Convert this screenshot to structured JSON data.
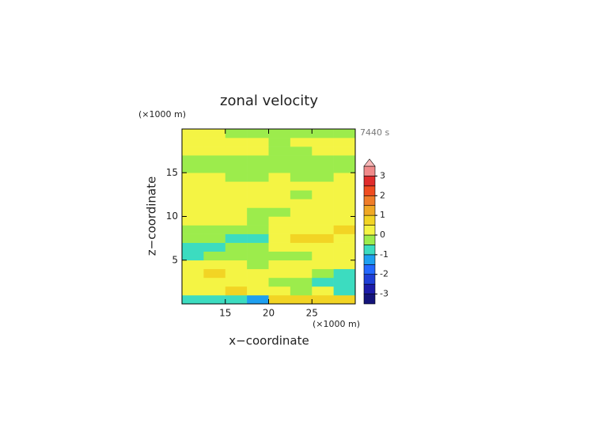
{
  "chart_data": {
    "type": "contour",
    "title": "zonal velocity",
    "xlabel": "x−coordinate",
    "ylabel": "z−coordinate",
    "x_unit_label": "(×1000 m)",
    "y_unit_label": "(×1000 m)",
    "time_label": "7440 s",
    "xlim": [
      10,
      30
    ],
    "ylim": [
      0,
      20
    ],
    "xticks": [
      15,
      20,
      25
    ],
    "yticks": [
      5,
      10,
      15
    ],
    "x": [
      11.25,
      13.75,
      16.25,
      18.75,
      21.25,
      23.75,
      26.25,
      28.75
    ],
    "y": [
      0.5,
      1.5,
      2.5,
      3.5,
      4.5,
      5.5,
      6.5,
      7.5,
      8.5,
      9.5,
      10.5,
      11.5,
      12.5,
      13.5,
      14.5,
      15.5,
      16.5,
      17.5,
      18.5,
      19.5
    ],
    "z": [
      [
        -0.75,
        -0.75,
        -0.75,
        -1.25,
        0.75,
        0.75,
        0.75,
        0.75
      ],
      [
        0.25,
        0.25,
        0.75,
        0.25,
        0.25,
        -0.25,
        0.25,
        -0.75
      ],
      [
        0.25,
        0.25,
        0.25,
        0.25,
        -0.25,
        -0.25,
        -0.75,
        -0.75
      ],
      [
        0.25,
        0.75,
        0.25,
        0.25,
        0.25,
        0.25,
        -0.25,
        -0.75
      ],
      [
        0.25,
        0.25,
        0.25,
        -0.25,
        0.25,
        0.25,
        0.25,
        0.25
      ],
      [
        -0.75,
        -0.25,
        -0.25,
        -0.25,
        -0.25,
        -0.25,
        0.25,
        0.25
      ],
      [
        -0.75,
        -0.75,
        -0.25,
        -0.25,
        0.25,
        0.25,
        0.25,
        0.25
      ],
      [
        -0.25,
        -0.25,
        -0.75,
        -0.75,
        0.25,
        0.75,
        0.75,
        0.25
      ],
      [
        -0.25,
        -0.25,
        -0.25,
        -0.25,
        0.25,
        0.25,
        0.25,
        0.75
      ],
      [
        0.25,
        0.25,
        0.25,
        -0.25,
        0.25,
        0.25,
        0.25,
        0.25
      ],
      [
        0.25,
        0.25,
        0.25,
        -0.25,
        -0.25,
        0.25,
        0.25,
        0.25
      ],
      [
        0.25,
        0.25,
        0.25,
        0.25,
        0.25,
        0.25,
        0.25,
        0.25
      ],
      [
        0.25,
        0.25,
        0.25,
        0.25,
        0.25,
        -0.25,
        0.25,
        0.25
      ],
      [
        0.25,
        0.25,
        0.25,
        0.25,
        0.25,
        0.25,
        0.25,
        0.25
      ],
      [
        0.25,
        0.25,
        -0.25,
        -0.25,
        0.25,
        -0.25,
        -0.25,
        0.25
      ],
      [
        -0.25,
        -0.25,
        -0.25,
        -0.25,
        -0.25,
        -0.25,
        -0.25,
        -0.25
      ],
      [
        -0.25,
        -0.25,
        -0.25,
        -0.25,
        -0.25,
        -0.25,
        -0.25,
        -0.25
      ],
      [
        0.25,
        0.25,
        0.25,
        0.25,
        -0.25,
        -0.25,
        0.25,
        0.25
      ],
      [
        0.25,
        0.25,
        0.25,
        0.25,
        -0.25,
        0.25,
        0.25,
        0.25
      ],
      [
        0.25,
        0.25,
        -0.25,
        -0.25,
        -0.25,
        -0.25,
        -0.25,
        -0.25
      ]
    ],
    "colorbar": {
      "levels": [
        -3.5,
        -3,
        -2.5,
        -2,
        -1.5,
        -1,
        -0.5,
        0,
        0.5,
        1,
        1.5,
        2,
        2.5,
        3,
        3.5
      ],
      "colors": [
        "#14147a",
        "#1c1ca8",
        "#1f3fd6",
        "#2468ff",
        "#1ea0f0",
        "#3cdcc0",
        "#9cec4c",
        "#f4f444",
        "#f2d424",
        "#f0a824",
        "#f07c28",
        "#f04c20",
        "#e02c2c",
        "#f08a8a",
        "#f8b8b8"
      ],
      "ticks": [
        -3,
        -2,
        -1,
        0,
        1,
        2,
        3
      ]
    }
  }
}
